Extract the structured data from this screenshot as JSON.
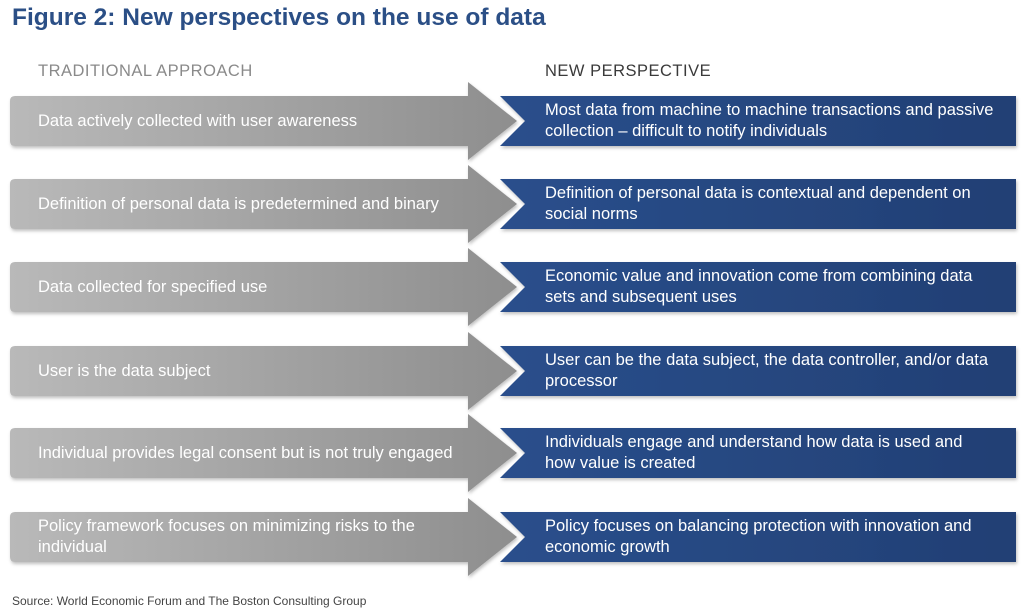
{
  "title": "Figure 2: New perspectives on the use of data",
  "headers": {
    "traditional": "TRADITIONAL APPROACH",
    "new": "NEW PERSPECTIVE"
  },
  "rows": [
    {
      "traditional": "Data actively collected with user awareness",
      "new": "Most data from machine to machine transactions and passive collection – difficult to notify individuals"
    },
    {
      "traditional": "Definition of personal data is predetermined and binary",
      "new": "Definition of personal data is contextual and dependent on social norms"
    },
    {
      "traditional": "Data collected for specified use",
      "new": "Economic value and innovation come from combining data sets and subsequent uses"
    },
    {
      "traditional": "User is the data subject",
      "new": "User can be the data subject, the data controller, and/or data processor"
    },
    {
      "traditional": "Individual provides legal consent but is not truly engaged",
      "new": "Individuals engage and understand how data is used and how value is created"
    },
    {
      "traditional": "Policy framework focuses on minimizing risks to the individual",
      "new": "Policy focuses on balancing protection with innovation and economic growth"
    }
  ],
  "source": "Source: World Economic Forum and The Boston Consulting Group",
  "colors": {
    "title": "#2b4f86",
    "grey_start": "#b9b9b9",
    "grey_end": "#8e8e8e",
    "blue_start": "#2a4f8c",
    "blue_end": "#223f74"
  }
}
